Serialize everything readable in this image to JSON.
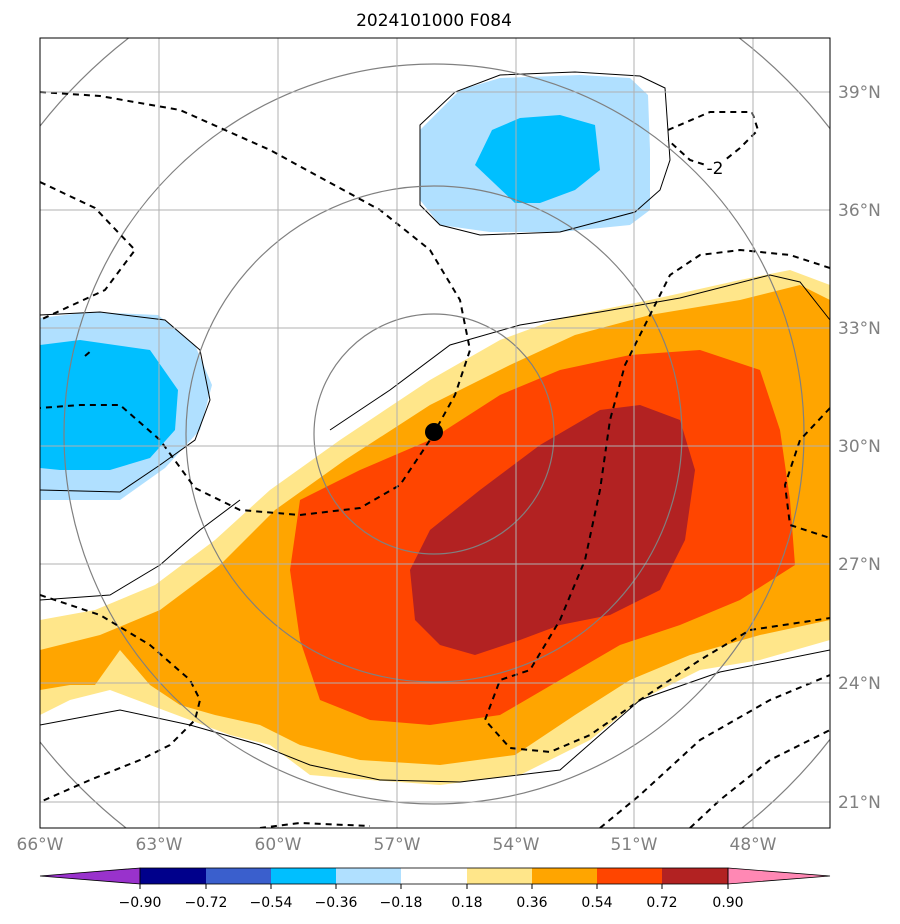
{
  "title": "2024101000 F084",
  "map": {
    "lat_labels": [
      "39°N",
      "36°N",
      "33°N",
      "30°N",
      "27°N",
      "24°N",
      "21°N"
    ],
    "lon_labels": [
      "66°W",
      "63°W",
      "60°W",
      "57°W",
      "54°W",
      "51°W",
      "48°W"
    ],
    "contour_label": "-2",
    "center_marker": "storm-center-dot"
  },
  "colorbar": {
    "ticks": [
      "−0.90",
      "−0.72",
      "−0.54",
      "−0.36",
      "−0.18",
      "0.18",
      "0.36",
      "0.54",
      "0.72",
      "0.90"
    ],
    "colors": {
      "under": "#9932cc",
      "bins": [
        "#00008b",
        "#3a5fcd",
        "#00bfff",
        "#b0e0ff",
        "#ffffff",
        "#ffe68a",
        "#ffa500",
        "#ff4500",
        "#b22222"
      ],
      "over": "#ff88b4"
    }
  },
  "colors": {
    "light_blue": "#b0e0ff",
    "blue": "#00bfff",
    "light_yellow": "#ffe68a",
    "orange": "#ffa500",
    "red_orange": "#ff4500",
    "dark_red": "#b22222",
    "grid": "#b0b0b0",
    "ring": "#808080"
  }
}
